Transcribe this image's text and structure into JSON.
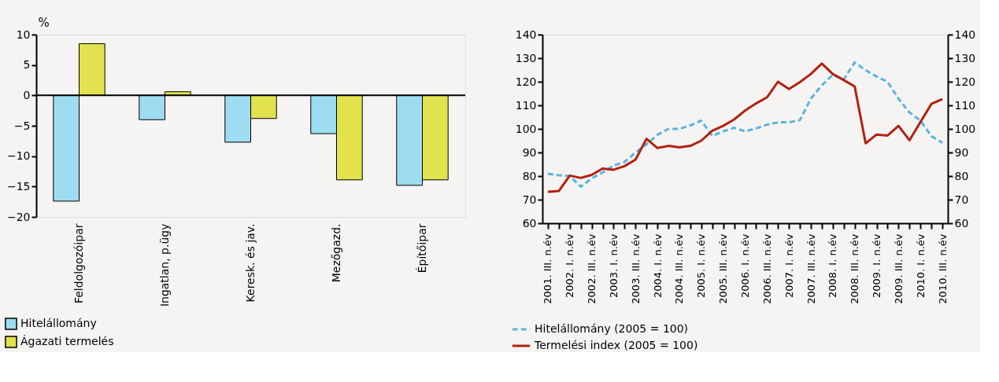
{
  "chart_data": [
    {
      "type": "bar",
      "ylabel": "%",
      "categories": [
        "Feldolgozóipar",
        "Ingatlan, p.ügy",
        "Keresk. és jav.",
        "Mezőgazd.",
        "Építőipar"
      ],
      "series": [
        {
          "name": "Hitelállomány",
          "color": "#9ddcf1",
          "values": [
            -17.4,
            -4.0,
            -7.7,
            -6.3,
            -14.8
          ]
        },
        {
          "name": "Ágazati termelés",
          "color": "#e1e24e",
          "values": [
            8.5,
            0.6,
            -3.8,
            -13.9,
            -13.9
          ]
        }
      ],
      "ylim": [
        -20,
        10
      ],
      "yticks": [
        -20,
        -15,
        -10,
        -5,
        0,
        5,
        10
      ],
      "grid": false,
      "legend": "bottom left",
      "ref_lines": [
        {
          "axis": "y",
          "value": 0,
          "color": "#000000"
        }
      ]
    },
    {
      "type": "line",
      "categories": [
        "2001. III. n.év",
        null,
        "2002. I. n.év",
        null,
        "2002. III. n.év",
        null,
        "2003. I. n.év",
        null,
        "2003. III. n.év",
        null,
        "2004. I. n.év",
        null,
        "2004. III. n.év",
        null,
        "2005. I. n.év",
        null,
        "2005. III. n.év",
        null,
        "2006. I. n.év",
        null,
        "2006. III. n.év",
        null,
        "2007. I. n.év",
        null,
        "2007. III. n.év",
        null,
        "2008. I. n.év",
        null,
        "2008. III. n.év",
        null,
        "2009. I. n.év",
        null,
        "2009. III. n.év",
        null,
        "2010. I. n.év",
        null,
        "2010. III. n.év"
      ],
      "series": [
        {
          "name": "Hitelállomány (2005 = 100)",
          "color": "#5ab4e0",
          "line_style": "dashed",
          "values": [
            81,
            80.3,
            80,
            75.5,
            79,
            81.5,
            84.5,
            86,
            90,
            93.5,
            97.5,
            100,
            100,
            101.5,
            103.5,
            97,
            99,
            100.5,
            99,
            100.2,
            101.8,
            102.8,
            102.8,
            103.7,
            112.8,
            118.5,
            122.9,
            121,
            128.2,
            124.9,
            122.2,
            120,
            112.8,
            107,
            103.5,
            96.9,
            94.1
          ]
        },
        {
          "name": "Termelési index (2005 = 100)",
          "color": "#b22010",
          "line_style": "solid",
          "values": [
            73.3,
            73.7,
            80.2,
            79.2,
            80.5,
            83.2,
            82.7,
            84.2,
            87,
            95.8,
            91.9,
            92.8,
            92.2,
            92.8,
            95,
            99.2,
            101.3,
            104,
            107.8,
            110.8,
            113.4,
            120,
            116.9,
            119.8,
            123.3,
            127.7,
            123.3,
            120.7,
            118,
            93.9,
            97.6,
            97.2,
            101.3,
            95.2,
            102.9,
            110.6,
            112.6
          ]
        }
      ],
      "ylim": [
        60,
        140
      ],
      "yticks": [
        60,
        70,
        80,
        90,
        100,
        110,
        120,
        130,
        140
      ],
      "y2lim": [
        60,
        140
      ],
      "y2ticks": [
        60,
        70,
        80,
        90,
        100,
        110,
        120,
        130,
        140
      ],
      "grid": false,
      "legend": "bottom left"
    }
  ]
}
